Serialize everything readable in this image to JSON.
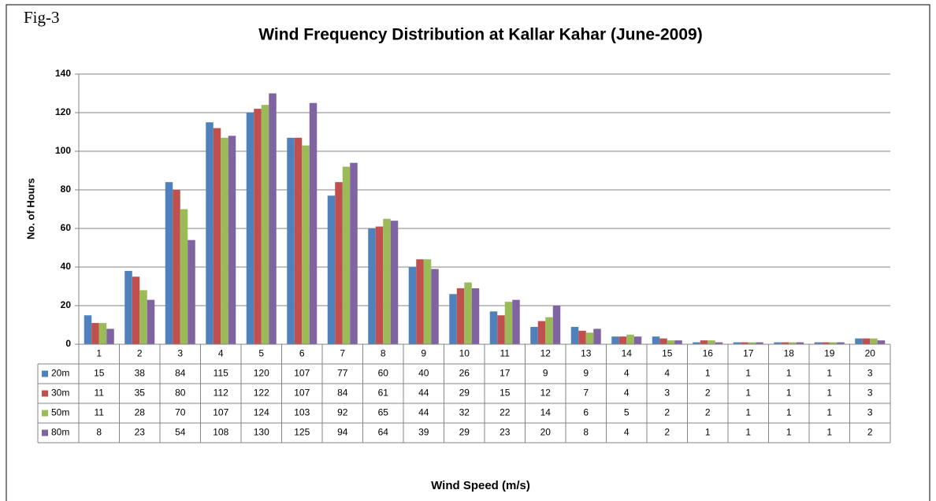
{
  "chart_data": {
    "type": "bar",
    "fig_label": "Fig-3",
    "title": "Wind Frequency Distribution at Kallar Kahar (June-2009)",
    "y_label": "No. of Hours",
    "x_label": "Wind Speed (m/s)",
    "categories": [
      1,
      2,
      3,
      4,
      5,
      6,
      7,
      8,
      9,
      10,
      11,
      12,
      13,
      14,
      15,
      16,
      17,
      18,
      19,
      20
    ],
    "series": [
      {
        "name": "20m",
        "color": "#4f81bd",
        "values": [
          15,
          38,
          84,
          115,
          120,
          107,
          77,
          60,
          40,
          26,
          17,
          9,
          9,
          4,
          4,
          1,
          1,
          1,
          1,
          3
        ]
      },
      {
        "name": "30m",
        "color": "#c0504d",
        "values": [
          11,
          35,
          80,
          112,
          122,
          107,
          84,
          61,
          44,
          29,
          15,
          12,
          7,
          4,
          3,
          2,
          1,
          1,
          1,
          3
        ]
      },
      {
        "name": "50m",
        "color": "#9bbb59",
        "values": [
          11,
          28,
          70,
          107,
          124,
          103,
          92,
          65,
          44,
          32,
          22,
          14,
          6,
          5,
          2,
          2,
          1,
          1,
          1,
          3
        ]
      },
      {
        "name": "80m",
        "color": "#8064a2",
        "values": [
          8,
          23,
          54,
          108,
          130,
          125,
          94,
          64,
          39,
          29,
          23,
          20,
          8,
          4,
          2,
          1,
          1,
          1,
          1,
          2
        ]
      }
    ],
    "ylim": [
      0,
      140
    ],
    "yticks": [
      0,
      20,
      40,
      60,
      80,
      100,
      120,
      140
    ],
    "grid": true
  }
}
